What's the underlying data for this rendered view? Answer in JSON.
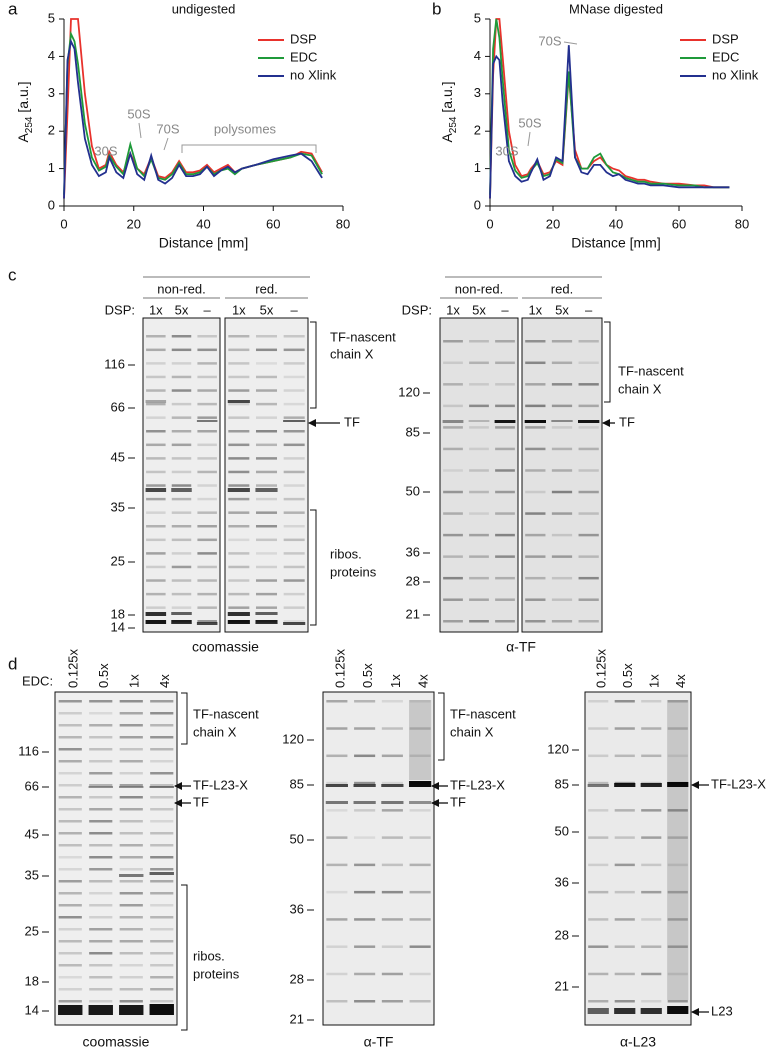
{
  "chart_data": [
    {
      "type": "line",
      "label": "a",
      "title": "undigested",
      "xlabel": "Distance [mm]",
      "ylabel": [
        "A",
        "254",
        " [a.u.]"
      ],
      "x": [
        0,
        1,
        2,
        3,
        4,
        6,
        8,
        10,
        12,
        13,
        15,
        17,
        19,
        21,
        23,
        25,
        27,
        29,
        31,
        33,
        35,
        37,
        39,
        41,
        43,
        45,
        47,
        49,
        51,
        55,
        60,
        65,
        68,
        71,
        74
      ],
      "series": [
        {
          "name": "DSP",
          "color": "#e8322c",
          "values": [
            0.2,
            2.5,
            5,
            5,
            5,
            3,
            1.6,
            1.0,
            1.1,
            1.45,
            1.1,
            0.9,
            1.4,
            1.0,
            0.85,
            1.3,
            0.8,
            0.75,
            0.9,
            1.2,
            0.9,
            0.9,
            0.95,
            1.1,
            0.9,
            1.0,
            1.1,
            0.9,
            1.0,
            1.1,
            1.2,
            1.3,
            1.45,
            1.4,
            0.9
          ]
        },
        {
          "name": "EDC",
          "color": "#1f9a3a",
          "values": [
            0.3,
            3.8,
            4.6,
            4.4,
            3.8,
            2.2,
            1.3,
            0.95,
            1.05,
            1.35,
            1.05,
            0.85,
            1.65,
            1.0,
            0.8,
            1.25,
            0.75,
            0.7,
            0.85,
            1.15,
            0.85,
            0.85,
            0.9,
            1.05,
            0.85,
            0.95,
            1.0,
            0.85,
            1.0,
            1.1,
            1.2,
            1.3,
            1.4,
            1.35,
            0.85
          ]
        },
        {
          "name": "no Xlink",
          "color": "#23308f",
          "values": [
            0.2,
            3.9,
            4.4,
            4.2,
            3.3,
            1.8,
            1.1,
            0.8,
            0.9,
            1.3,
            0.9,
            0.75,
            1.4,
            0.85,
            0.7,
            1.35,
            0.7,
            0.6,
            0.75,
            1.1,
            0.8,
            0.8,
            0.85,
            1.05,
            0.8,
            0.95,
            1.05,
            0.9,
            1.0,
            1.1,
            1.25,
            1.35,
            1.4,
            1.2,
            0.75
          ]
        }
      ],
      "xlim": [
        0,
        80
      ],
      "ylim": [
        0,
        5
      ],
      "xticks": [
        0,
        20,
        40,
        60,
        80
      ],
      "yticks": [
        0,
        1,
        2,
        3,
        4,
        5
      ],
      "legend": "upper right",
      "annotations": [
        "30S",
        "50S",
        "70S",
        "polysomes"
      ]
    },
    {
      "type": "line",
      "label": "b",
      "title": "MNase digested",
      "xlabel": "Distance [mm]",
      "ylabel": [
        "A",
        "254",
        " [a.u.]"
      ],
      "x": [
        0,
        1,
        2,
        3,
        4,
        6,
        8,
        10,
        12,
        13,
        15,
        17,
        19,
        21,
        23,
        25,
        27,
        29,
        31,
        33,
        35,
        37,
        39,
        41,
        43,
        45,
        47,
        49,
        51,
        55,
        60,
        65,
        68,
        71,
        76
      ],
      "series": [
        {
          "name": "DSP",
          "color": "#e8322c",
          "values": [
            0.2,
            3.5,
            5,
            5,
            4,
            2.0,
            1.1,
            0.8,
            0.85,
            1.0,
            1.2,
            0.85,
            0.9,
            1.2,
            1.1,
            3.5,
            1.5,
            1.0,
            1.0,
            1.2,
            1.3,
            1.1,
            1.0,
            0.95,
            0.8,
            0.75,
            0.7,
            0.7,
            0.65,
            0.6,
            0.6,
            0.55,
            0.55,
            0.5,
            0.5
          ]
        },
        {
          "name": "EDC",
          "color": "#1f9a3a",
          "values": [
            0.3,
            4.2,
            5,
            4.5,
            3.4,
            1.5,
            0.95,
            0.75,
            0.8,
            0.95,
            1.15,
            0.8,
            0.85,
            1.25,
            1.15,
            3.6,
            1.3,
            1.0,
            1.0,
            1.3,
            1.4,
            1.1,
            0.9,
            0.85,
            0.75,
            0.7,
            0.65,
            0.65,
            0.6,
            0.6,
            0.55,
            0.55,
            0.5,
            0.5,
            0.5
          ]
        },
        {
          "name": "no Xlink",
          "color": "#23308f",
          "values": [
            0.2,
            3.8,
            4.0,
            3.9,
            2.8,
            1.2,
            0.8,
            0.65,
            0.7,
            0.9,
            1.25,
            0.7,
            0.8,
            1.3,
            1.2,
            4.3,
            1.3,
            0.9,
            0.85,
            1.1,
            1.1,
            0.9,
            0.8,
            0.85,
            0.7,
            0.65,
            0.6,
            0.6,
            0.55,
            0.55,
            0.5,
            0.5,
            0.5,
            0.5,
            0.5
          ]
        }
      ],
      "xlim": [
        0,
        80
      ],
      "ylim": [
        0,
        5
      ],
      "xticks": [
        0,
        20,
        40,
        60,
        80
      ],
      "yticks": [
        0,
        1,
        2,
        3,
        4,
        5
      ],
      "legend": "upper right",
      "annotations": [
        "70S",
        "50S",
        "30S"
      ]
    }
  ],
  "panel_c": {
    "label": "c",
    "left": {
      "groups": [
        "non-red.",
        "red."
      ],
      "lane_label": "DSP:",
      "lanes": [
        "1x",
        "5x",
        "–",
        "1x",
        "5x",
        "–"
      ],
      "markers": [
        "116",
        "66",
        "45",
        "35",
        "25",
        "18",
        "14"
      ],
      "annotations": [
        "TF-nascent",
        "chain X",
        "TF",
        "ribos.",
        "proteins"
      ],
      "caption": "coomassie"
    },
    "right": {
      "groups": [
        "non-red.",
        "red."
      ],
      "lane_label": "DSP:",
      "lanes": [
        "1x",
        "5x",
        "–",
        "1x",
        "5x",
        "–"
      ],
      "markers": [
        "120",
        "85",
        "50",
        "36",
        "28",
        "21"
      ],
      "annotations": [
        "TF-nascent",
        "chain X",
        "TF"
      ],
      "caption": "α-TF"
    }
  },
  "panel_d": {
    "label": "d",
    "lane_label": "EDC:",
    "gels": [
      {
        "lanes": [
          "0.125x",
          "0.5x",
          "1x",
          "4x"
        ],
        "markers": [
          "116",
          "66",
          "45",
          "35",
          "25",
          "18",
          "14"
        ],
        "annotations": [
          "TF-nascent",
          "chain X",
          "TF-L23-X",
          "TF",
          "ribos.",
          "proteins"
        ],
        "caption": "coomassie"
      },
      {
        "lanes": [
          "0.125x",
          "0.5x",
          "1x",
          "4x"
        ],
        "markers": [
          "120",
          "85",
          "50",
          "36",
          "28",
          "21"
        ],
        "annotations": [
          "TF-nascent",
          "chain X",
          "TF-L23-X",
          "TF"
        ],
        "caption": "α-TF"
      },
      {
        "lanes": [
          "0.125x",
          "0.5x",
          "1x",
          "4x"
        ],
        "markers": [
          "120",
          "85",
          "50",
          "36",
          "28",
          "21"
        ],
        "annotations": [
          "TF-L23-X",
          "L23"
        ],
        "caption": "α-L23"
      }
    ]
  }
}
